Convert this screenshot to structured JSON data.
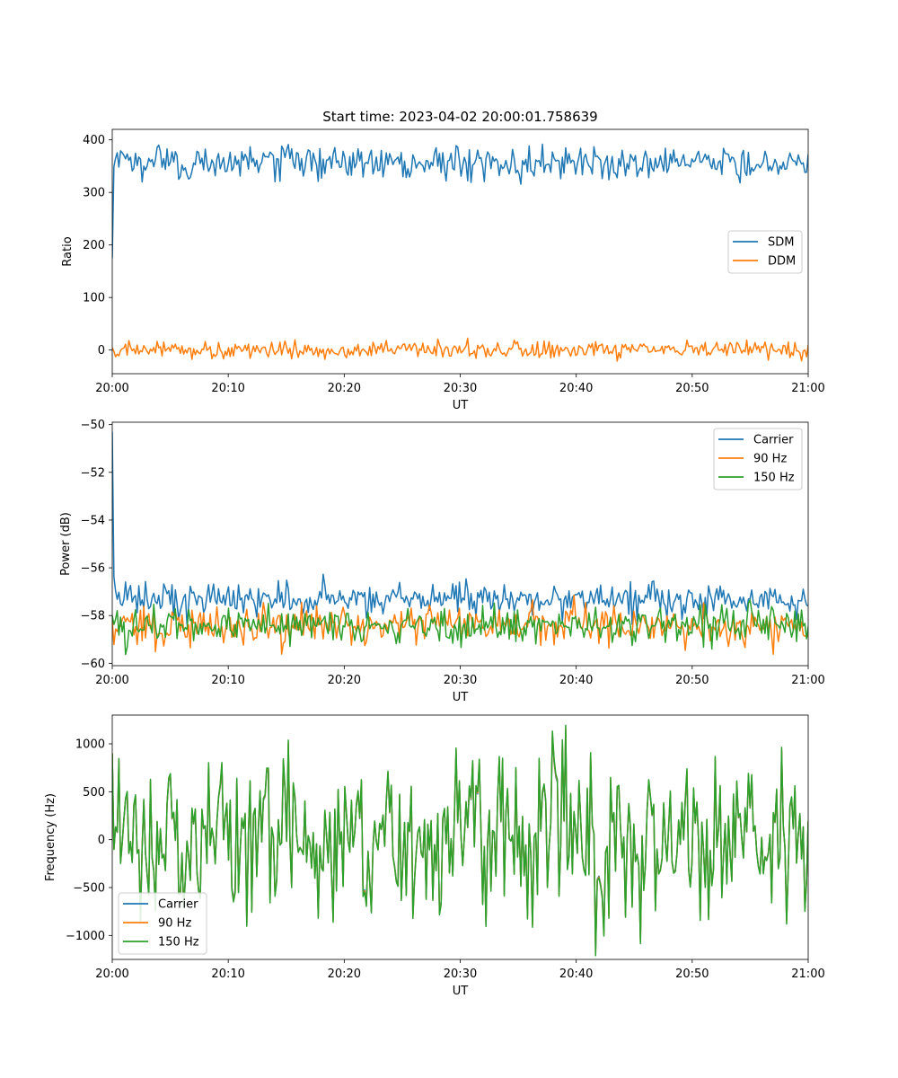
{
  "figure": {
    "title": "Start time: 2023-04-02 20:00:01.758639"
  },
  "chart_data": [
    {
      "type": "line",
      "title": "Start time: 2023-04-02 20:00:01.758639",
      "xlabel": "UT",
      "ylabel": "Ratio",
      "xlim": [
        "20:00",
        "21:00"
      ],
      "xticks": [
        "20:00",
        "20:10",
        "20:20",
        "20:30",
        "20:40",
        "20:50",
        "21:00"
      ],
      "ylim": [
        -45,
        420
      ],
      "yticks": [
        0,
        100,
        200,
        300,
        400
      ],
      "legend_position": "center-right",
      "grid": false,
      "series": [
        {
          "name": "SDM",
          "color": "#1f77b4",
          "start_value": 175,
          "mean": 357,
          "spread": 16
        },
        {
          "name": "DDM",
          "color": "#ff7f0e",
          "start_value": 5,
          "mean": 0,
          "spread": 8
        }
      ]
    },
    {
      "type": "line",
      "title": "",
      "xlabel": "UT",
      "ylabel": "Power (dB)",
      "xlim": [
        "20:00",
        "21:00"
      ],
      "xticks": [
        "20:00",
        "20:10",
        "20:20",
        "20:30",
        "20:40",
        "20:50",
        "21:00"
      ],
      "ylim": [
        -60.1,
        -49.9
      ],
      "yticks": [
        -60,
        -58,
        -56,
        -54,
        -52,
        -50
      ],
      "legend_position": "top-right",
      "grid": false,
      "series": [
        {
          "name": "Carrier",
          "color": "#1f77b4",
          "start_value": -50.3,
          "mean": -57.3,
          "spread": 0.35
        },
        {
          "name": "90 Hz",
          "color": "#ff7f0e",
          "start_value": -58.2,
          "mean": -58.4,
          "spread": 0.4
        },
        {
          "name": "150 Hz",
          "color": "#2ca02c",
          "start_value": -58.0,
          "mean": -58.4,
          "spread": 0.4
        }
      ]
    },
    {
      "type": "line",
      "title": "",
      "xlabel": "UT",
      "ylabel": "Frequency (Hz)",
      "xlim": [
        "20:00",
        "21:00"
      ],
      "xticks": [
        "20:00",
        "20:10",
        "20:20",
        "20:30",
        "20:40",
        "20:50",
        "21:00"
      ],
      "ylim": [
        -1250,
        1300
      ],
      "yticks": [
        -1000,
        -500,
        0,
        500,
        1000
      ],
      "legend_position": "bottom-left",
      "grid": false,
      "series": [
        {
          "name": "Carrier",
          "color": "#1f77b4",
          "start_value": 900,
          "mean": 0,
          "spread": 420
        },
        {
          "name": "90 Hz",
          "color": "#ff7f0e",
          "start_value": 900,
          "mean": 0,
          "spread": 430
        },
        {
          "name": "150 Hz",
          "color": "#2ca02c",
          "start_value": 900,
          "mean": 0,
          "spread": 440
        }
      ]
    }
  ]
}
